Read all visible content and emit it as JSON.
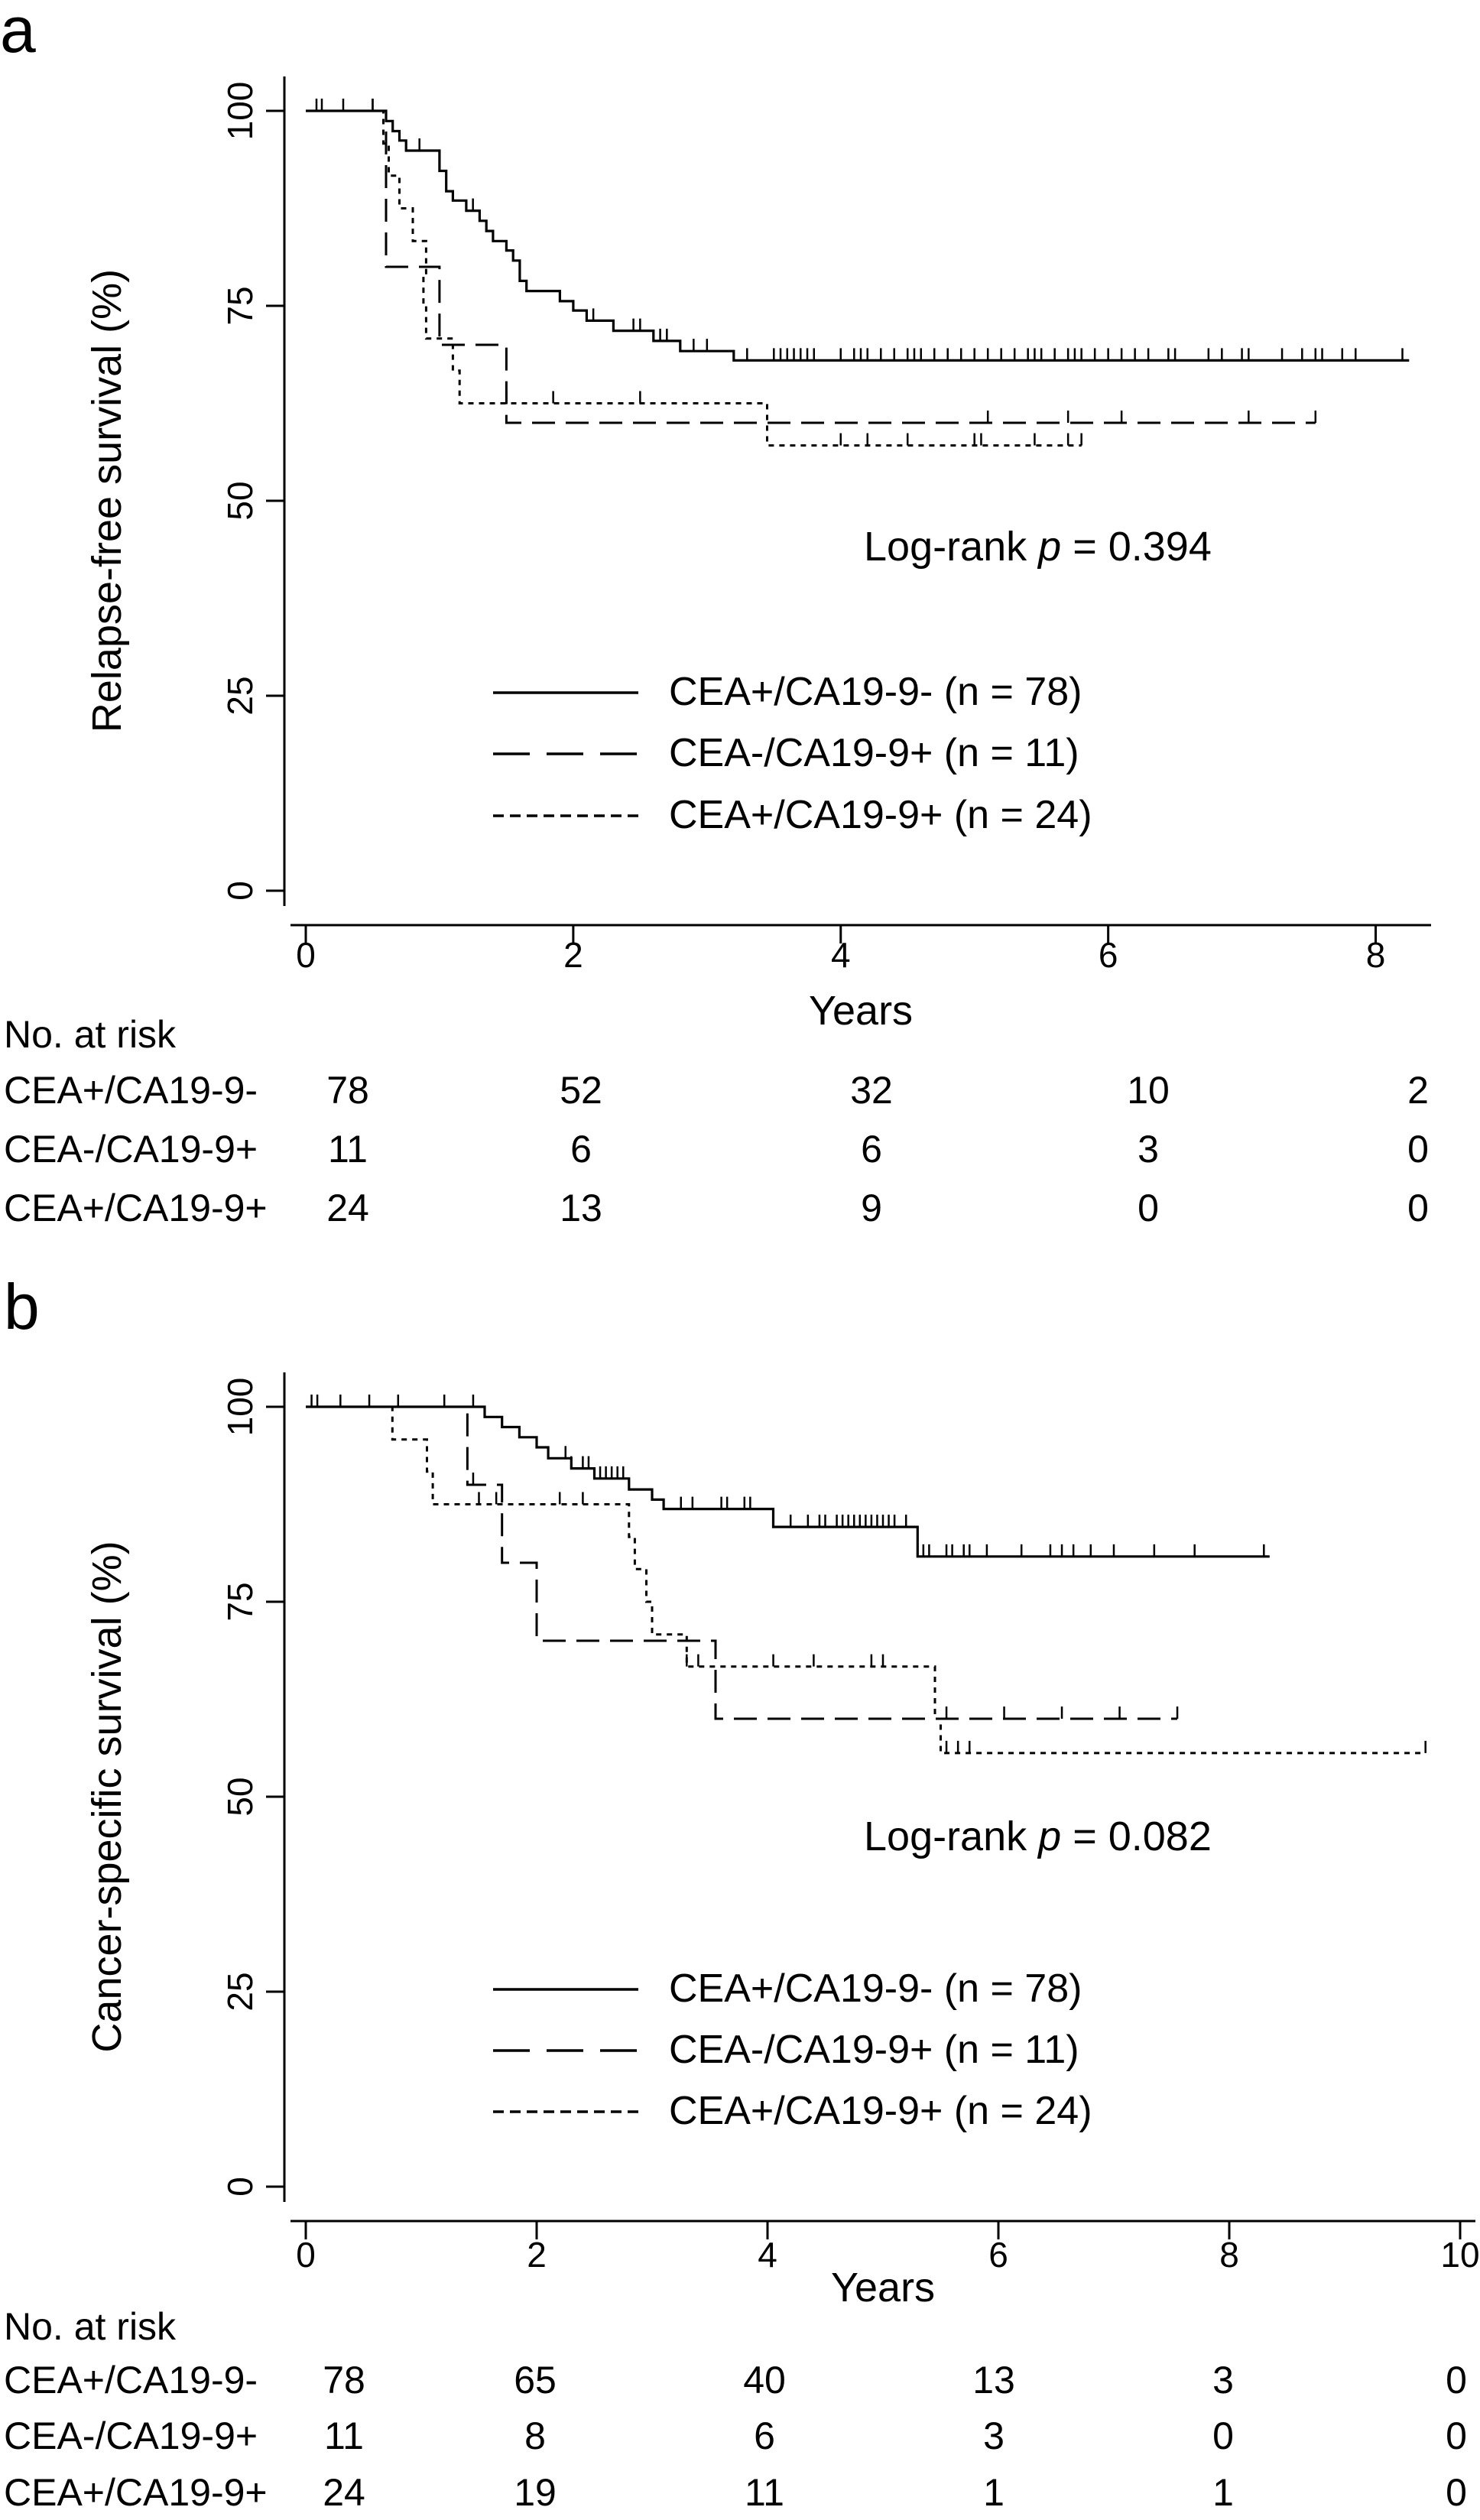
{
  "chart_data": [
    {
      "panel_label": "a",
      "type": "line",
      "subtype": "kaplan-meier",
      "title": "",
      "xlabel": "Years",
      "ylabel": "Relapse-free survival (%)",
      "xlim": [
        0,
        8.3
      ],
      "ylim": [
        0,
        100
      ],
      "xticks": [
        0,
        2,
        4,
        6,
        8
      ],
      "xtick_labels": [
        "0",
        "2",
        "4",
        "6",
        "8"
      ],
      "yticks": [
        0,
        25,
        50,
        75,
        100
      ],
      "ytick_labels": [
        "0",
        "25",
        "50",
        "75",
        "100"
      ],
      "grid": false,
      "legend_position": "bottom-right",
      "annotation": {
        "prefix": "Log-rank ",
        "p_symbol": "p",
        "suffix": " = 0.394"
      },
      "series": [
        {
          "name": "CEA+/CA19-9- (n = 78)",
          "style": "solid",
          "steps": [
            [
              0,
              100
            ],
            [
              0.55,
              100
            ],
            [
              0.6,
              98.7
            ],
            [
              0.65,
              97.4
            ],
            [
              0.7,
              96.2
            ],
            [
              0.75,
              94.9
            ],
            [
              1.0,
              92.3
            ],
            [
              1.05,
              89.7
            ],
            [
              1.1,
              88.5
            ],
            [
              1.2,
              87.2
            ],
            [
              1.3,
              85.9
            ],
            [
              1.35,
              84.6
            ],
            [
              1.4,
              83.3
            ],
            [
              1.5,
              82.1
            ],
            [
              1.55,
              80.8
            ],
            [
              1.6,
              78.2
            ],
            [
              1.65,
              76.9
            ],
            [
              1.9,
              75.6
            ],
            [
              2.0,
              74.4
            ],
            [
              2.1,
              73.1
            ],
            [
              2.3,
              71.8
            ],
            [
              2.6,
              70.5
            ],
            [
              2.8,
              69.2
            ],
            [
              3.2,
              68.0
            ],
            [
              8.25,
              68.0
            ]
          ],
          "censors": [
            [
              0.05,
              100
            ],
            [
              0.1,
              100
            ],
            [
              0.3,
              100
            ],
            [
              0.5,
              100
            ],
            [
              0.85,
              94.9
            ],
            [
              1.25,
              87.2
            ],
            [
              2.15,
              73.1
            ],
            [
              2.45,
              73.1
            ],
            [
              2.5,
              71.8
            ],
            [
              2.9,
              69.2
            ],
            [
              3.0,
              69.2
            ],
            [
              3.5,
              68.0
            ],
            [
              4.0,
              68.0
            ],
            [
              4.3,
              68.0
            ],
            [
              5.1,
              68.0
            ],
            [
              6.05,
              68.0
            ],
            [
              7.6,
              68.0
            ],
            [
              8.2,
              68.0
            ]
          ],
          "censor_ticks": [
            0.08,
            0.12,
            0.28,
            0.5,
            0.85,
            1.25,
            1.6,
            2.15,
            2.45,
            2.5,
            2.65,
            2.7,
            2.9,
            3.0,
            3.3,
            3.5,
            3.55,
            3.6,
            3.65,
            3.7,
            3.75,
            3.8,
            4.0,
            4.1,
            4.15,
            4.2,
            4.3,
            4.4,
            4.5,
            4.55,
            4.6,
            4.7,
            4.8,
            4.9,
            5.0,
            5.1,
            5.2,
            5.3,
            5.4,
            5.45,
            5.5,
            5.6,
            5.7,
            5.75,
            5.8,
            5.9,
            6.0,
            6.1,
            6.2,
            6.3,
            6.45,
            6.5,
            6.75,
            6.85,
            7.0,
            7.05,
            7.3,
            7.45,
            7.55,
            7.6,
            7.75,
            7.85,
            8.2
          ]
        },
        {
          "name": "CEA-/CA19-9+ (n = 11)",
          "style": "dashed",
          "steps": [
            [
              0,
              100
            ],
            [
              0.55,
              100
            ],
            [
              0.6,
              90
            ],
            [
              0.6,
              80
            ],
            [
              0.9,
              80
            ],
            [
              1.0,
              70
            ],
            [
              1.5,
              70
            ],
            [
              1.5,
              60
            ],
            [
              7.55,
              60
            ]
          ],
          "censor_ticks": [
            0.5,
            5.1,
            5.7,
            6.1,
            7.05,
            7.55
          ]
        },
        {
          "name": "CEA+/CA19-9+ (n = 24)",
          "style": "dotted",
          "steps": [
            [
              0,
              100
            ],
            [
              0.55,
              100
            ],
            [
              0.58,
              95.8
            ],
            [
              0.62,
              91.7
            ],
            [
              0.7,
              87.5
            ],
            [
              0.8,
              83.3
            ],
            [
              0.9,
              79.2
            ],
            [
              0.88,
              75.0
            ],
            [
              0.9,
              70.8
            ],
            [
              1.1,
              66.7
            ],
            [
              1.15,
              62.5
            ],
            [
              3.4,
              62.5
            ],
            [
              3.45,
              57.1
            ],
            [
              5.8,
              57.1
            ]
          ],
          "censor_ticks": [
            1.5,
            1.85,
            2.5,
            4.0,
            4.2,
            4.5,
            5.0,
            5.05,
            5.45,
            5.7,
            5.8
          ]
        }
      ],
      "risk_table": {
        "header": "No. at risk",
        "time_points": [
          0,
          2,
          4,
          6,
          8
        ],
        "rows": [
          {
            "label": "CEA+/CA19-9-",
            "counts": [
              "78",
              "52",
              "32",
              "10",
              "2"
            ]
          },
          {
            "label": "CEA-/CA19-9+",
            "counts": [
              "11",
              "6",
              "6",
              "3",
              "0"
            ]
          },
          {
            "label": "CEA+/CA19-9+",
            "counts": [
              "24",
              "13",
              "9",
              "0",
              "0"
            ]
          }
        ]
      }
    },
    {
      "panel_label": "b",
      "type": "line",
      "subtype": "kaplan-meier",
      "title": "",
      "xlabel": "Years",
      "ylabel": "Cancer-specific survival (%)",
      "xlim": [
        0,
        10
      ],
      "ylim": [
        0,
        100
      ],
      "xticks": [
        0,
        2,
        4,
        6,
        8,
        10
      ],
      "xtick_labels": [
        "0",
        "2",
        "4",
        "6",
        "8",
        "10"
      ],
      "yticks": [
        0,
        25,
        50,
        75,
        100
      ],
      "ytick_labels": [
        "0",
        "25",
        "50",
        "75",
        "100"
      ],
      "grid": false,
      "legend_position": "bottom-right",
      "annotation": {
        "prefix": "Log-rank ",
        "p_symbol": "p",
        "suffix": " = 0.082"
      },
      "series": [
        {
          "name": "CEA+/CA19-9- (n = 78)",
          "style": "solid",
          "steps": [
            [
              0,
              100
            ],
            [
              1.5,
              100
            ],
            [
              1.55,
              98.7
            ],
            [
              1.7,
              97.4
            ],
            [
              1.85,
              96.1
            ],
            [
              2.0,
              94.8
            ],
            [
              2.1,
              93.4
            ],
            [
              2.3,
              92.1
            ],
            [
              2.5,
              90.8
            ],
            [
              2.8,
              89.4
            ],
            [
              3.0,
              88.1
            ],
            [
              3.1,
              86.9
            ],
            [
              4.05,
              86.9
            ],
            [
              4.05,
              84.6
            ],
            [
              5.3,
              84.6
            ],
            [
              5.3,
              80.8
            ],
            [
              8.35,
              80.8
            ]
          ],
          "censor_ticks": [
            0.05,
            0.1,
            0.3,
            0.55,
            0.8,
            1.2,
            1.45,
            2.25,
            2.3,
            2.4,
            2.45,
            2.55,
            2.6,
            2.65,
            2.7,
            2.75,
            3.25,
            3.35,
            3.6,
            3.65,
            3.8,
            3.85,
            4.2,
            4.35,
            4.45,
            4.5,
            4.6,
            4.65,
            4.7,
            4.75,
            4.8,
            4.85,
            4.9,
            4.95,
            5.0,
            5.05,
            5.1,
            5.2,
            5.35,
            5.4,
            5.55,
            5.6,
            5.7,
            5.75,
            5.9,
            6.2,
            6.45,
            6.55,
            6.65,
            6.8,
            7.0,
            7.35,
            7.7,
            8.3
          ]
        },
        {
          "name": "CEA-/CA19-9+ (n = 11)",
          "style": "dashed",
          "steps": [
            [
              0,
              100
            ],
            [
              1.4,
              100
            ],
            [
              1.4,
              90
            ],
            [
              1.7,
              90
            ],
            [
              1.7,
              80
            ],
            [
              2.0,
              80
            ],
            [
              2.0,
              70
            ],
            [
              3.55,
              70
            ],
            [
              3.55,
              60
            ],
            [
              7.55,
              60
            ]
          ],
          "censor_ticks": [
            1.45,
            5.55,
            6.05,
            6.55,
            7.05,
            7.55
          ]
        },
        {
          "name": "CEA+/CA19-9+ (n = 24)",
          "style": "dotted",
          "steps": [
            [
              0,
              100
            ],
            [
              0.75,
              100
            ],
            [
              0.75,
              95.8
            ],
            [
              1.05,
              91.7
            ],
            [
              1.1,
              87.5
            ],
            [
              2.75,
              87.5
            ],
            [
              2.8,
              83.3
            ],
            [
              2.85,
              79.2
            ],
            [
              2.95,
              75.0
            ],
            [
              3.0,
              70.8
            ],
            [
              3.3,
              66.7
            ],
            [
              5.45,
              66.7
            ],
            [
              5.45,
              60.0
            ],
            [
              5.5,
              55.6
            ],
            [
              9.7,
              55.6
            ]
          ],
          "censor_ticks": [
            1.5,
            1.65,
            2.2,
            2.4,
            3.3,
            3.4,
            4.05,
            4.4,
            4.9,
            5.0,
            5.55,
            5.65,
            5.75,
            9.7
          ]
        }
      ],
      "risk_table": {
        "header": "No. at risk",
        "time_points": [
          0,
          2,
          4,
          6,
          8,
          10
        ],
        "rows": [
          {
            "label": "CEA+/CA19-9-",
            "counts": [
              "78",
              "65",
              "40",
              "13",
              "3",
              "0"
            ]
          },
          {
            "label": "CEA-/CA19-9+",
            "counts": [
              "11",
              "8",
              "6",
              "3",
              "0",
              "0"
            ]
          },
          {
            "label": "CEA+/CA19-9+",
            "counts": [
              "24",
              "19",
              "11",
              "1",
              "1",
              "0"
            ]
          }
        ]
      }
    }
  ]
}
